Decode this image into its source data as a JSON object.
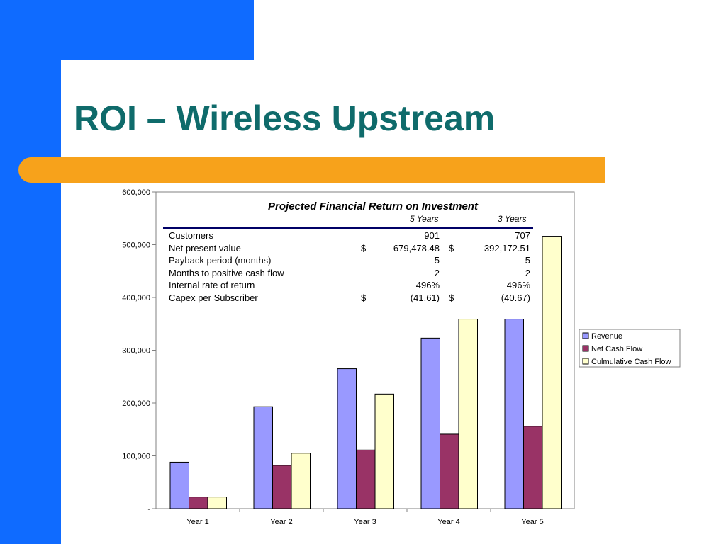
{
  "slide": {
    "title": "ROI – Wireless Upstream",
    "colors": {
      "blue": "#0f6bff",
      "orange": "#f7a21b",
      "title": "#0f6b6b"
    }
  },
  "table": {
    "title": "Projected Financial Return on Investment",
    "col1": "5 Years",
    "col2": "3 Years",
    "rows": [
      {
        "label": "Customers",
        "d1": "",
        "v1": "901",
        "d2": "",
        "v2": "707"
      },
      {
        "label": "Net present value",
        "d1": "$",
        "v1": "679,478.48",
        "d2": "$",
        "v2": "392,172.51"
      },
      {
        "label": "Payback period (months)",
        "d1": "",
        "v1": "5",
        "d2": "",
        "v2": "5"
      },
      {
        "label": "Months to positive cash flow",
        "d1": "",
        "v1": "2",
        "d2": "",
        "v2": "2"
      },
      {
        "label": "Internal rate of return",
        "d1": "",
        "v1": "496%",
        "d2": "",
        "v2": "496%"
      },
      {
        "label": "Capex per Subscriber",
        "d1": "$",
        "v1": "(41.61)",
        "d2": "$",
        "v2": "(40.67)"
      }
    ]
  },
  "chart_data": {
    "type": "bar",
    "categories": [
      "Year 1",
      "Year 2",
      "Year 3",
      "Year 4",
      "Year 5"
    ],
    "series": [
      {
        "name": "Revenue",
        "color": "#9999ff",
        "values": [
          88000,
          193000,
          265000,
          323000,
          359000
        ]
      },
      {
        "name": "Net Cash Flow",
        "color": "#993366",
        "values": [
          22000,
          82000,
          111000,
          141000,
          156000
        ]
      },
      {
        "name": "Culmulative Cash Flow",
        "color": "#ffffcc",
        "values": [
          22000,
          105000,
          217000,
          359000,
          516000
        ]
      }
    ],
    "ylim": [
      0,
      600000
    ],
    "yticks": [
      0,
      100000,
      200000,
      300000,
      400000,
      500000,
      600000
    ],
    "ytick_labels": [
      "-",
      "100,000",
      "200,000",
      "300,000",
      "400,000",
      "500,000",
      "600,000"
    ],
    "grid": false,
    "legend": "right"
  }
}
